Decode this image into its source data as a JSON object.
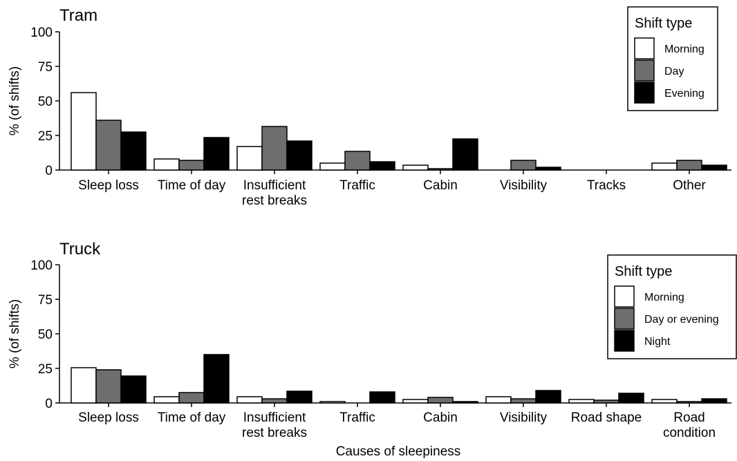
{
  "chart_data": [
    {
      "type": "bar",
      "title": "Tram",
      "ylabel": "% (of shifts)",
      "xlabel": "",
      "ylim": [
        0,
        100
      ],
      "yticks": [
        0,
        25,
        50,
        75,
        100
      ],
      "categories": [
        [
          "Sleep loss"
        ],
        [
          "Time of day"
        ],
        [
          "Insufficient",
          "rest breaks"
        ],
        [
          "Traffic"
        ],
        [
          "Cabin"
        ],
        [
          "Visibility"
        ],
        [
          "Tracks"
        ],
        [
          "Other"
        ]
      ],
      "legend": {
        "title": "Shift type",
        "position": "top-right"
      },
      "series": [
        {
          "name": "Morning",
          "color": "#ffffff",
          "values": [
            56,
            8,
            17,
            5,
            3.5,
            0,
            0,
            5
          ]
        },
        {
          "name": "Day",
          "color": "#6e6e6e",
          "values": [
            36,
            7,
            31.5,
            13.5,
            1,
            7,
            0,
            7
          ]
        },
        {
          "name": "Evening",
          "color": "#000000",
          "values": [
            27.5,
            23.5,
            21,
            6,
            22.5,
            2,
            0,
            3.5
          ]
        }
      ]
    },
    {
      "type": "bar",
      "title": "Truck",
      "ylabel": "% (of shifts)",
      "xlabel": "Causes of sleepiness",
      "ylim": [
        0,
        100
      ],
      "yticks": [
        0,
        25,
        50,
        75,
        100
      ],
      "categories": [
        [
          "Sleep loss"
        ],
        [
          "Time of day"
        ],
        [
          "Insufficient",
          "rest breaks"
        ],
        [
          "Traffic"
        ],
        [
          "Cabin"
        ],
        [
          "Visibility"
        ],
        [
          "Road shape"
        ],
        [
          "Road",
          "condition"
        ]
      ],
      "legend": {
        "title": "Shift type",
        "position": "top-right"
      },
      "series": [
        {
          "name": "Morning",
          "color": "#ffffff",
          "values": [
            25.5,
            4.5,
            4.5,
            1,
            2.5,
            4.5,
            2.5,
            2.5
          ]
        },
        {
          "name": "Day or evening",
          "color": "#6e6e6e",
          "values": [
            24,
            7.5,
            3,
            0,
            4,
            3,
            2,
            1
          ]
        },
        {
          "name": "Night",
          "color": "#000000",
          "values": [
            19.5,
            35,
            8.5,
            8,
            1,
            9,
            7,
            3
          ]
        }
      ]
    }
  ]
}
